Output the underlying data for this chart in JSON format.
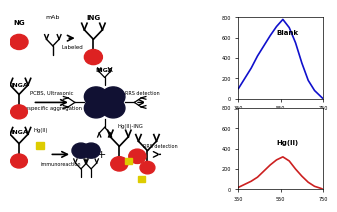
{
  "blank_x": [
    350,
    380,
    410,
    440,
    470,
    500,
    530,
    560,
    590,
    620,
    650,
    680,
    710,
    740,
    750
  ],
  "blank_y": [
    100,
    200,
    300,
    420,
    520,
    620,
    710,
    780,
    700,
    550,
    350,
    180,
    80,
    20,
    0
  ],
  "hgii_x": [
    350,
    380,
    410,
    440,
    470,
    500,
    530,
    560,
    590,
    620,
    650,
    680,
    710,
    740,
    750
  ],
  "hgii_y": [
    20,
    50,
    80,
    120,
    180,
    240,
    290,
    320,
    280,
    200,
    130,
    70,
    30,
    10,
    0
  ],
  "blank_color": "#1010cc",
  "hgii_color": "#cc2020",
  "blank_label": "Blank",
  "hgii_label": "Hg(II)",
  "xmin": 350,
  "xmax": 750,
  "ymin": 0,
  "ymax": 800,
  "yticks": [
    0,
    200,
    400,
    600,
    800
  ],
  "xticks": [
    350,
    550,
    750
  ],
  "bg_color": "#ffffff",
  "dark_color": "#111133",
  "red_color": "#dd2222",
  "yellow_color": "#ddcc00"
}
